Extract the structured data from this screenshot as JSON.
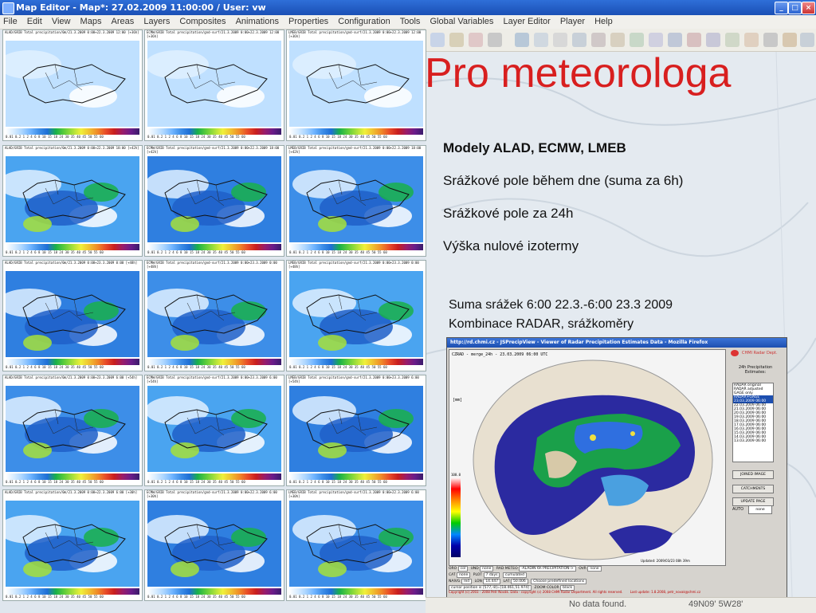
{
  "window": {
    "title": "Map Editor - Map*: 27.02.2009 11:00:00 / User: vw",
    "controls": [
      "_",
      "□",
      "×"
    ]
  },
  "menu": [
    "File",
    "Edit",
    "View",
    "Maps",
    "Areas",
    "Layers",
    "Composites",
    "Animations",
    "Properties",
    "Configuration",
    "Tools",
    "Global Variables",
    "Layer Editor",
    "Player",
    "Help"
  ],
  "tiles": {
    "rows": [
      [
        "ALAD/GRIB Total precipitation/0m/21.3.2009 0:00+22.3.2009 12:00 [+36h]",
        "ECMW/GRIB Total precipitation/gnd-surf/21.3.2009 0:00+22.3.2009 12:00 [+36h]",
        "LMEB/GRIB Total precipitation/gnd-surf/21.3.2009 0:00+22.3.2009 12:00 [+36h]"
      ],
      [
        "ALAD/GRIB Total precipitation/0m/21.3.2009 0:00+22.3.2009 18:00 [+42h]",
        "ECMW/GRIB Total precipitation/gnd-surf/21.3.2009 0:00+22.3.2009 18:00 [+42h]",
        "LMEB/GRIB Total precipitation/gnd-surf/21.3.2009 0:00+22.3.2009 18:00 [+42h]"
      ],
      [
        "ALAD/GRIB Total precipitation/0m/21.3.2009 0:00+23.3.2009 0:00 [+48h]",
        "ECMW/GRIB Total precipitation/gnd-surf/21.3.2009 0:00+23.3.2009 0:00 [+48h]",
        "LMEB/GRIB Total precipitation/gnd-surf/21.3.2009 0:00+23.3.2009 0:00 [+48h]"
      ],
      [
        "ALAD/GRIB Total precipitation/0m/21.3.2009 0:00+23.3.2009 6:00 [+54h]",
        "ECMW/GRIB Total precipitation/gnd-surf/21.3.2009 0:00+23.3.2009 6:00 [+54h]",
        "LMEB/GRIB Total precipitation/gnd-surf/21.3.2009 0:00+23.3.2009 6:00 [+54h]"
      ],
      [
        "ALAD/GRIB Total precipitation/0m/21.3.2009 0:00+22.3.2009 6:00 [+30h]",
        "ECMW/GRIB Total precipitation/gnd-surf/21.3.2009 0:00+22.3.2009 6:00 [+30h]",
        "LMEB/GRIB Total precipitation/gnd-surf/21.3.2009 0:00+22.3.2009 6:00 [+30h]"
      ]
    ],
    "legend_ticks": "0.01 0.2 1 2 4 6 8 10 15 18 24 30 35 40 45 50 55 60"
  },
  "heading": "Pro meteorologa",
  "bullets": {
    "models": "Modely ALAD, ECMW, LMEB",
    "daily": "Srážkové pole během dne (suma za 6h)",
    "day24": "Srážkové pole za 24h",
    "zero_iso": "Výška nulové izotermy"
  },
  "radar_caption": {
    "line1": "Suma srážek 6:00 22.3.-6:00 23.3 2009",
    "line2": "Kombinace RADAR, srážkoměry"
  },
  "browser": {
    "title": "http://rd.chmi.cz - JSPrecipView - Viewer of Radar Precipitation Estimates Data - Mozilla Firefox",
    "map_label": "CZRAD - merge_24h - 23.03.2009 06:00 UTC",
    "unit_label": "[mm]",
    "scale_top": "100.0",
    "updated": "Updated: 2009/03/23 08h 39m",
    "brand": "CHMI Radar Dept.",
    "panel_title": "24h Precipitation Estimates:",
    "list": [
      "RADAR original",
      "RADAR adjusted",
      "GAGE only",
      "RADAR+GAGE",
      "23.03.2009 06:00",
      "22.03.2009 06:00",
      "21.03.2009 06:00",
      "20.03.2009 06:00",
      "19.03.2009 06:00",
      "18.03.2009 06:00",
      "17.03.2009 06:00",
      "16.03.2009 06:00",
      "15.03.2009 06:00",
      "14.03.2009 06:00",
      "13.03.2009 06:00"
    ],
    "buttons": {
      "joined": "JOINED IMAGE",
      "catchments": "CATCHMENTS",
      "update": "UPDATE PAGE"
    },
    "auto_label": "AUTO",
    "auto_value": "none",
    "row1": {
      "oro": "ORO",
      "oro_val": "col",
      "und": "UND",
      "und_val": "none",
      "rad": "RAD",
      "meteo": "METEO",
      "meteo_val": "-ALADIN 6h PRECIPITATION->",
      "ovr": "OVR",
      "ovr_val": "none"
    },
    "row2": {
      "cat": "CAT",
      "cat_val": "none",
      "plot": "PLOT",
      "plot_val": "7 days",
      "cum": "cumulated"
    },
    "row3": {
      "naivg": "NAIVG",
      "naivg_val": "red",
      "lon": "LON",
      "lon_val": "14.447",
      "lat": "LAT",
      "lat_val": "50.006",
      "loc": "Choose predefined locations"
    },
    "row4": {
      "cursor": "cursor position is [577,-8]=[18.461,51.974]",
      "zoom": "ZOOM COLOR",
      "zoom_val": "black"
    },
    "footer": "Copyright (c) 2003 - 2008 Petr Novák. Data - copyright (c) 2008 CHMI Radar Department. All rights reserved.",
    "last_update": "Last update: 1.8.2008, petr_novak@chmi.cz"
  },
  "status": {
    "left": "No data found.",
    "right": "49N09' 5W28'"
  },
  "colors": {
    "accent_red": "#d81f1f",
    "title_blue": "#1d4fb0"
  }
}
